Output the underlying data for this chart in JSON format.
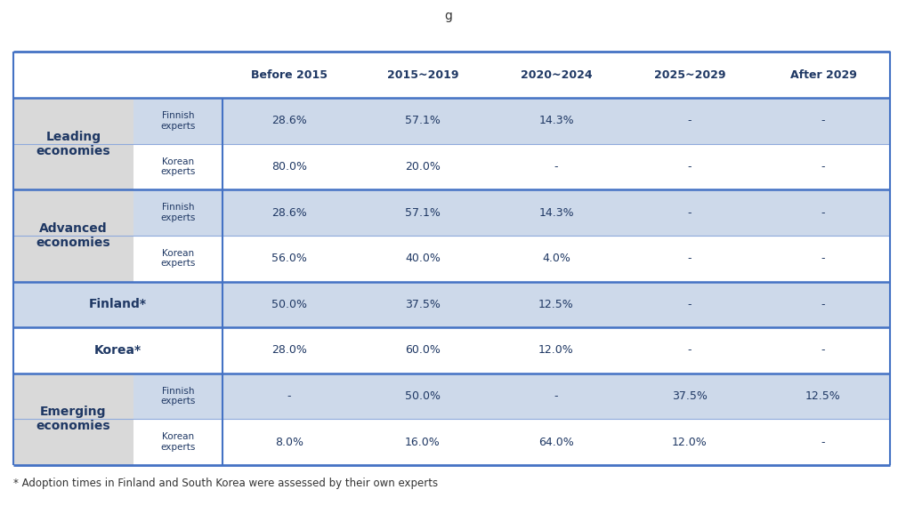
{
  "columns": [
    "Before 2015",
    "2015~2019",
    "2020~2024",
    "2025~2029",
    "After 2029"
  ],
  "footnote": "* Adoption times in Finland and South Korea were assessed by their own experts",
  "rows": [
    {
      "group_label": "Leading\neconomies",
      "sub_label": "Finnish\nexpert s",
      "values": [
        "28.6%",
        "57.1%",
        "14.3%",
        "-",
        "-"
      ],
      "data_bg": "#cdd9ea",
      "sub_bg": "#cdd9ea",
      "group_bg": "#d9d9d9",
      "single_row": false
    },
    {
      "group_label": "",
      "sub_label": "Korean\nexpert s",
      "values": [
        "80.0%",
        "20.0%",
        "-",
        "-",
        "-"
      ],
      "data_bg": "#ffffff",
      "sub_bg": "#ffffff",
      "group_bg": "#d9d9d9",
      "single_row": false
    },
    {
      "group_label": "Advanced\neconomies",
      "sub_label": "Finnish\nexpert s",
      "values": [
        "28.6%",
        "57.1%",
        "14.3%",
        "-",
        "-"
      ],
      "data_bg": "#cdd9ea",
      "sub_bg": "#cdd9ea",
      "group_bg": "#d9d9d9",
      "single_row": false
    },
    {
      "group_label": "",
      "sub_label": "Korean\nexpert s",
      "values": [
        "56.0%",
        "40.0%",
        "4.0%",
        "-",
        "-"
      ],
      "data_bg": "#ffffff",
      "sub_bg": "#ffffff",
      "group_bg": "#d9d9d9",
      "single_row": false
    },
    {
      "group_label": "Finland*",
      "sub_label": "",
      "values": [
        "50.0%",
        "37.5%",
        "12.5%",
        "-",
        "-"
      ],
      "data_bg": "#cdd9ea",
      "sub_bg": "#cdd9ea",
      "group_bg": "#cdd9ea",
      "single_row": true
    },
    {
      "group_label": "Korea*",
      "sub_label": "",
      "values": [
        "28.0%",
        "60.0%",
        "12.0%",
        "-",
        "-"
      ],
      "data_bg": "#ffffff",
      "sub_bg": "#ffffff",
      "group_bg": "#ffffff",
      "single_row": true
    },
    {
      "group_label": "Emerging\neconomies",
      "sub_label": "Finnish\nexpert s",
      "values": [
        "-",
        "50.0%",
        "-",
        "37.5%",
        "12.5%"
      ],
      "data_bg": "#cdd9ea",
      "sub_bg": "#cdd9ea",
      "group_bg": "#d9d9d9",
      "single_row": false
    },
    {
      "group_label": "",
      "sub_label": "Korean\nexpert s",
      "values": [
        "8.0%",
        "16.0%",
        "64.0%",
        "12.0%",
        "-"
      ],
      "data_bg": "#ffffff",
      "sub_bg": "#ffffff",
      "group_bg": "#d9d9d9",
      "single_row": false
    }
  ],
  "header_text_color": "#1f3864",
  "group_text_color": "#1f3864",
  "sub_text_color": "#1f3864",
  "value_text_color": "#1f3864",
  "border_color": "#4472c4",
  "inner_border_color": "#8faadc",
  "title_snippet": "g"
}
